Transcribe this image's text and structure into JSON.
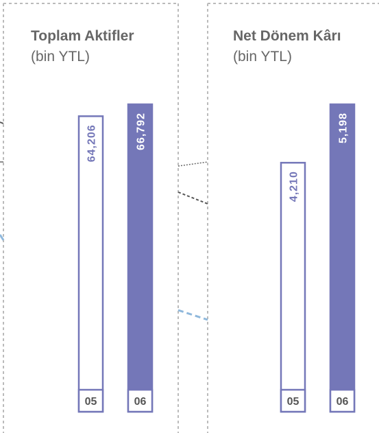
{
  "chart_data": [
    {
      "type": "bar",
      "title": "Toplam Aktifler",
      "subtitle": "(bin YTL)",
      "categories": [
        "05",
        "06"
      ],
      "values": [
        64206,
        66792
      ],
      "value_labels": [
        "64,206",
        "66,792"
      ],
      "colors": [
        "#ffffff",
        "#7477b8"
      ],
      "edge_color": "#7477b8"
    },
    {
      "type": "bar",
      "title": "Net Dönem Kârı",
      "subtitle": "(bin YTL)",
      "categories": [
        "05",
        "06"
      ],
      "values": [
        4210,
        5198
      ],
      "value_labels": [
        "4,210",
        "5,198"
      ],
      "colors": [
        "#ffffff",
        "#7477b8"
      ],
      "edge_color": "#7477b8"
    }
  ]
}
